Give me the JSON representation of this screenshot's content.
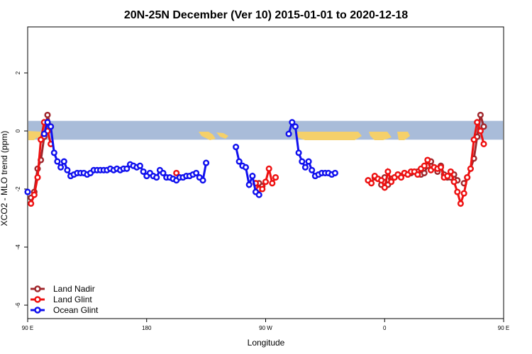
{
  "chart_data": {
    "type": "line",
    "title": "20N-25N December (Ver 10)   2015-01-01 to 2020-12-18",
    "xlabel": "Longitude",
    "ylabel": "XCO2 - MLO trend (ppm)",
    "xlim": [
      90,
      450
    ],
    "ylim": [
      -6.3,
      3.5
    ],
    "x_ticks": [
      90,
      180,
      270,
      360,
      450,
      540
    ],
    "x_tick_labels": [
      "90 E",
      "180",
      "90 W",
      "0",
      "90 E",
      "180"
    ],
    "y_ticks": [
      2,
      0,
      -2,
      -4,
      -6
    ],
    "y_tick_labels": [
      "2",
      "0",
      "-2",
      "-4",
      "-6"
    ],
    "grid": false,
    "legend_position": "bottom-left",
    "background_band": {
      "y_from": 0.3,
      "y_to": -0.3,
      "colors": {
        "ocean": "#a9bcd9",
        "land": "#f5d06a"
      }
    },
    "series": [
      {
        "name": "Land Nadir",
        "color": "#a0282d",
        "points": [
          [
            92.5,
            -2.3
          ],
          [
            95,
            -2.1
          ],
          [
            97.5,
            -1.3
          ],
          [
            100,
            -1.0
          ],
          [
            102.5,
            -0.2
          ],
          [
            105,
            0.55
          ],
          [
            107.5,
            0.15
          ],
          [
            262.5,
            -1.8
          ],
          [
            265,
            -1.8
          ],
          [
            267.5,
            -1.9
          ],
          [
            347.5,
            -1.7
          ],
          [
            352.5,
            -1.6
          ],
          [
            355,
            -1.65
          ],
          [
            357.5,
            -1.85
          ],
          [
            360,
            -1.6
          ],
          [
            362.5,
            -1.85
          ],
          [
            365,
            -1.65
          ],
          [
            367.5,
            -1.6
          ],
          [
            370,
            -1.5
          ],
          [
            372.5,
            -1.55
          ],
          [
            375,
            -1.45
          ],
          [
            377.5,
            -1.5
          ],
          [
            380,
            -1.45
          ],
          [
            385,
            -1.4
          ],
          [
            387.5,
            -1.5
          ],
          [
            390,
            -1.45
          ],
          [
            392.5,
            -1.2
          ],
          [
            395,
            -1.05
          ],
          [
            397.5,
            -1.25
          ],
          [
            400,
            -1.4
          ],
          [
            402.5,
            -1.2
          ],
          [
            405,
            -1.5
          ],
          [
            407.5,
            -1.6
          ],
          [
            410,
            -1.6
          ],
          [
            412.5,
            -1.5
          ],
          [
            415,
            -1.7
          ],
          [
            420,
            -1.8
          ],
          [
            422.5,
            -1.6
          ],
          [
            425,
            -1.3
          ],
          [
            427.5,
            -0.95
          ],
          [
            430,
            -0.2
          ],
          [
            432.5,
            0.55
          ],
          [
            435,
            0.15
          ]
        ]
      },
      {
        "name": "Land Glint",
        "color": "#ee1111",
        "points": [
          [
            92.5,
            -2.5
          ],
          [
            95,
            -2.2
          ],
          [
            97.5,
            -1.6
          ],
          [
            100,
            -0.3
          ],
          [
            102.5,
            0.3
          ],
          [
            105,
            0.0
          ],
          [
            107.5,
            -0.45
          ],
          [
            202.5,
            -1.45
          ],
          [
            262.5,
            -1.8
          ],
          [
            265,
            -2.0
          ],
          [
            267.5,
            -2.0
          ],
          [
            270,
            -1.75
          ],
          [
            272.5,
            -1.3
          ],
          [
            275,
            -1.8
          ],
          [
            277.5,
            -1.6
          ],
          [
            347.5,
            -1.7
          ],
          [
            350,
            -1.8
          ],
          [
            352.5,
            -1.55
          ],
          [
            355,
            -1.65
          ],
          [
            357.5,
            -1.7
          ],
          [
            360,
            -1.95
          ],
          [
            362.5,
            -1.4
          ],
          [
            365,
            -1.75
          ],
          [
            367.5,
            -1.6
          ],
          [
            370,
            -1.5
          ],
          [
            372.5,
            -1.6
          ],
          [
            375,
            -1.45
          ],
          [
            377.5,
            -1.5
          ],
          [
            380,
            -1.4
          ],
          [
            382.5,
            -1.4
          ],
          [
            385,
            -1.5
          ],
          [
            387.5,
            -1.3
          ],
          [
            390,
            -1.2
          ],
          [
            392.5,
            -1.0
          ],
          [
            395,
            -1.35
          ],
          [
            397.5,
            -1.25
          ],
          [
            400,
            -1.3
          ],
          [
            402.5,
            -1.25
          ],
          [
            405,
            -1.6
          ],
          [
            407.5,
            -1.55
          ],
          [
            410,
            -1.4
          ],
          [
            412.5,
            -1.75
          ],
          [
            415,
            -2.1
          ],
          [
            417.5,
            -2.5
          ],
          [
            420,
            -2.15
          ],
          [
            422.5,
            -1.6
          ],
          [
            425,
            -1.3
          ],
          [
            427.5,
            -0.3
          ],
          [
            430,
            0.3
          ],
          [
            432.5,
            0.0
          ],
          [
            435,
            -0.45
          ]
        ]
      },
      {
        "name": "Ocean Glint",
        "color": "#1010ee",
        "points": [
          [
            90,
            -2.1
          ],
          [
            102.5,
            -0.1
          ],
          [
            105,
            0.3
          ],
          [
            107.5,
            0.15
          ],
          [
            110,
            -0.75
          ],
          [
            112.5,
            -1.05
          ],
          [
            115,
            -1.25
          ],
          [
            117.5,
            -1.05
          ],
          [
            120,
            -1.35
          ],
          [
            122.5,
            -1.55
          ],
          [
            125,
            -1.5
          ],
          [
            127.5,
            -1.45
          ],
          [
            130,
            -1.45
          ],
          [
            132.5,
            -1.45
          ],
          [
            135,
            -1.5
          ],
          [
            137.5,
            -1.45
          ],
          [
            140,
            -1.35
          ],
          [
            142.5,
            -1.35
          ],
          [
            145,
            -1.35
          ],
          [
            147.5,
            -1.35
          ],
          [
            150,
            -1.35
          ],
          [
            152.5,
            -1.3
          ],
          [
            155,
            -1.35
          ],
          [
            157.5,
            -1.3
          ],
          [
            160,
            -1.35
          ],
          [
            162.5,
            -1.3
          ],
          [
            165,
            -1.3
          ],
          [
            167.5,
            -1.15
          ],
          [
            170,
            -1.2
          ],
          [
            172.5,
            -1.25
          ],
          [
            175,
            -1.2
          ],
          [
            177.5,
            -1.4
          ],
          [
            180,
            -1.55
          ],
          [
            182.5,
            -1.45
          ],
          [
            185,
            -1.55
          ],
          [
            187.5,
            -1.6
          ],
          [
            190,
            -1.35
          ],
          [
            192.5,
            -1.45
          ],
          [
            195,
            -1.6
          ],
          [
            197.5,
            -1.6
          ],
          [
            200,
            -1.65
          ],
          [
            202.5,
            -1.7
          ],
          [
            205,
            -1.6
          ],
          [
            207.5,
            -1.6
          ],
          [
            210,
            -1.55
          ],
          [
            212.5,
            -1.55
          ],
          [
            215,
            -1.5
          ],
          [
            217.5,
            -1.45
          ],
          [
            220,
            -1.6
          ],
          [
            222.5,
            -1.7
          ],
          [
            225,
            -1.1
          ],
          [
            247.5,
            -0.55
          ],
          [
            250,
            -1.05
          ],
          [
            252.5,
            -1.2
          ],
          [
            255,
            -1.25
          ],
          [
            257.5,
            -1.85
          ],
          [
            260,
            -1.55
          ],
          [
            262.5,
            -2.1
          ],
          [
            265,
            -2.2
          ],
          [
            287.5,
            -0.1
          ],
          [
            290,
            0.3
          ],
          [
            292.5,
            0.15
          ],
          [
            295,
            -0.75
          ],
          [
            297.5,
            -1.05
          ],
          [
            300,
            -1.25
          ],
          [
            302.5,
            -1.05
          ],
          [
            305,
            -1.35
          ],
          [
            307.5,
            -1.55
          ],
          [
            310,
            -1.5
          ],
          [
            312.5,
            -1.45
          ],
          [
            315,
            -1.45
          ],
          [
            317.5,
            -1.45
          ],
          [
            320,
            -1.5
          ],
          [
            322.5,
            -1.45
          ]
        ]
      }
    ]
  }
}
